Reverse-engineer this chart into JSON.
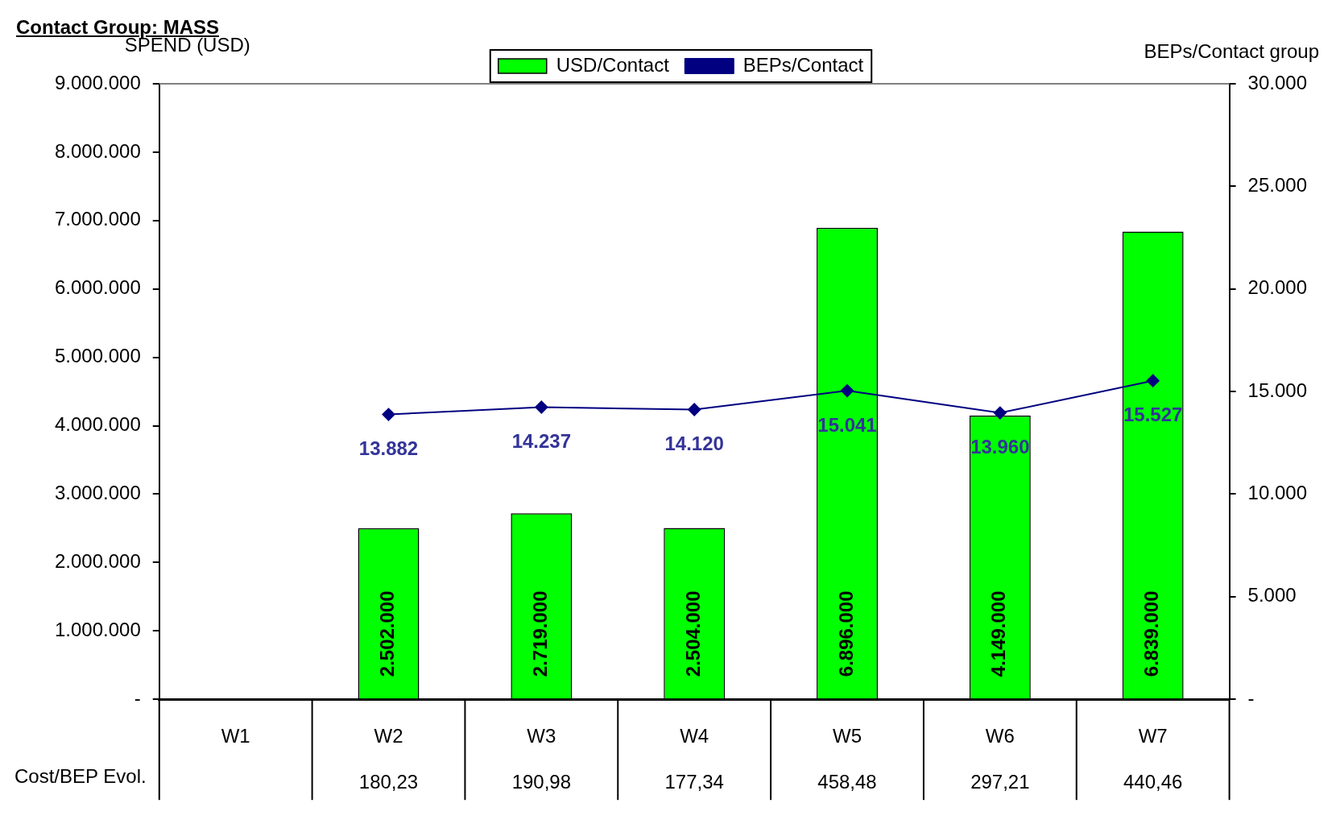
{
  "chart_data": {
    "type": "bar",
    "title": "Contact Group: MASS",
    "ylabel": "SPEND (USD)",
    "y2label": "BEPs/Contact group",
    "categories": [
      "W1",
      "W2",
      "W3",
      "W4",
      "W5",
      "W6",
      "W7"
    ],
    "series": [
      {
        "name": "USD/Contact",
        "color": "#00ff00",
        "values": [
          null,
          2502000,
          2719000,
          2504000,
          6896000,
          4149000,
          6839000
        ],
        "value_labels": [
          null,
          "2.502.000",
          "2.719.000",
          "2.504.000",
          "6.896.000",
          "4.149.000",
          "6.839.000"
        ]
      },
      {
        "name": "BEPs/Contact",
        "type": "line",
        "axis": "y2",
        "color": "#000080",
        "marker": "diamond",
        "values": [
          null,
          13882,
          14237,
          14120,
          15041,
          13960,
          15527
        ],
        "value_labels": [
          null,
          "13.882",
          "14.237",
          "14.120",
          "15.041",
          "13.960",
          "15.527"
        ]
      }
    ],
    "ylim": [
      0,
      9000000
    ],
    "yticks": [
      {
        "value": 0,
        "label": "-"
      },
      {
        "value": 1000000,
        "label": "1.000.000"
      },
      {
        "value": 2000000,
        "label": "2.000.000"
      },
      {
        "value": 3000000,
        "label": "3.000.000"
      },
      {
        "value": 4000000,
        "label": "4.000.000"
      },
      {
        "value": 5000000,
        "label": "5.000.000"
      },
      {
        "value": 6000000,
        "label": "6.000.000"
      },
      {
        "value": 7000000,
        "label": "7.000.000"
      },
      {
        "value": 8000000,
        "label": "8.000.000"
      },
      {
        "value": 9000000,
        "label": "9.000.000"
      }
    ],
    "y2lim": [
      0,
      30000
    ],
    "y2ticks": [
      {
        "value": 0,
        "label": "-"
      },
      {
        "value": 5000,
        "label": "5.000"
      },
      {
        "value": 10000,
        "label": "10.000"
      },
      {
        "value": 15000,
        "label": "15.000"
      },
      {
        "value": 20000,
        "label": "20.000"
      },
      {
        "value": 25000,
        "label": "25.000"
      },
      {
        "value": 30000,
        "label": "30.000"
      }
    ],
    "annotations": [
      "Cost/BEP Evol.",
      "180,23",
      "190,98",
      "177,34",
      "458,48",
      "297,21",
      "440,46"
    ],
    "legend": "top",
    "grid": false
  }
}
